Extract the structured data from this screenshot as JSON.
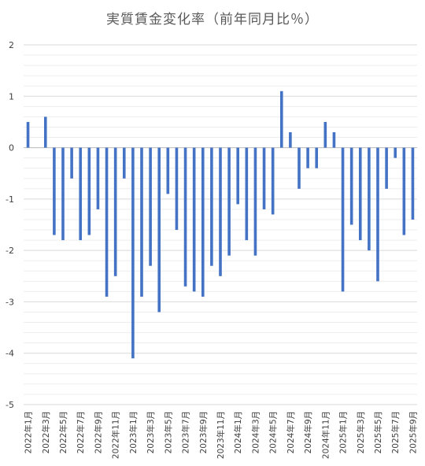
{
  "chart_data": {
    "type": "bar",
    "title": "実質賃金変化率（前年同月比％）",
    "xlabel": "",
    "ylabel": "",
    "ylim": [
      -5,
      2
    ],
    "yticks": [
      -5,
      -4,
      -3,
      -2,
      -1,
      0,
      1,
      2
    ],
    "grid": true,
    "legend": "none",
    "bar_color": "#4472C4",
    "categories": [
      "2022年1月",
      "2022年2月",
      "2022年3月",
      "2022年4月",
      "2022年5月",
      "2022年6月",
      "2022年7月",
      "2022年8月",
      "2022年9月",
      "2022年10月",
      "2022年11月",
      "2022年12月",
      "2023年1月",
      "2023年2月",
      "2023年3月",
      "2023年4月",
      "2023年5月",
      "2023年6月",
      "2023年7月",
      "2023年8月",
      "2023年9月",
      "2023年10月",
      "2023年11月",
      "2023年12月",
      "2024年1月",
      "2024年2月",
      "2024年3月",
      "2024年4月",
      "2024年5月",
      "2024年6月",
      "2024年7月",
      "2024年8月",
      "2024年9月",
      "2024年10月",
      "2024年11月",
      "2024年12月",
      "2025年1月",
      "2025年2月",
      "2025年3月",
      "2025年4月",
      "2025年5月",
      "2025年6月",
      "2025年7月",
      "2025年8月",
      "2025年9月"
    ],
    "tick_labels": [
      "2022年1月",
      "2022年3月",
      "2022年5月",
      "2022年7月",
      "2022年9月",
      "2022年11月",
      "2023年1月",
      "2023年3月",
      "2023年5月",
      "2023年7月",
      "2023年9月",
      "2023年11月",
      "2024年1月",
      "2024年3月",
      "2024年5月",
      "2024年7月",
      "2024年9月",
      "2024年11月",
      "2025年1月",
      "2025年3月",
      "2025年5月",
      "2025年7月",
      "2025年9月"
    ],
    "values": [
      0.5,
      0.0,
      0.6,
      -1.7,
      -1.8,
      -0.6,
      -1.8,
      -1.7,
      -1.2,
      -2.9,
      -2.5,
      -0.6,
      -4.1,
      -2.9,
      -2.3,
      -3.2,
      -0.9,
      -1.6,
      -2.7,
      -2.8,
      -2.9,
      -2.3,
      -2.5,
      -2.1,
      -1.1,
      -1.8,
      -2.1,
      -1.2,
      -1.3,
      1.1,
      0.3,
      -0.8,
      -0.4,
      -0.4,
      0.5,
      0.3,
      -2.8,
      -1.5,
      -1.8,
      -2.0,
      -2.6,
      -0.8,
      -0.2,
      -1.7,
      -1.4
    ]
  }
}
